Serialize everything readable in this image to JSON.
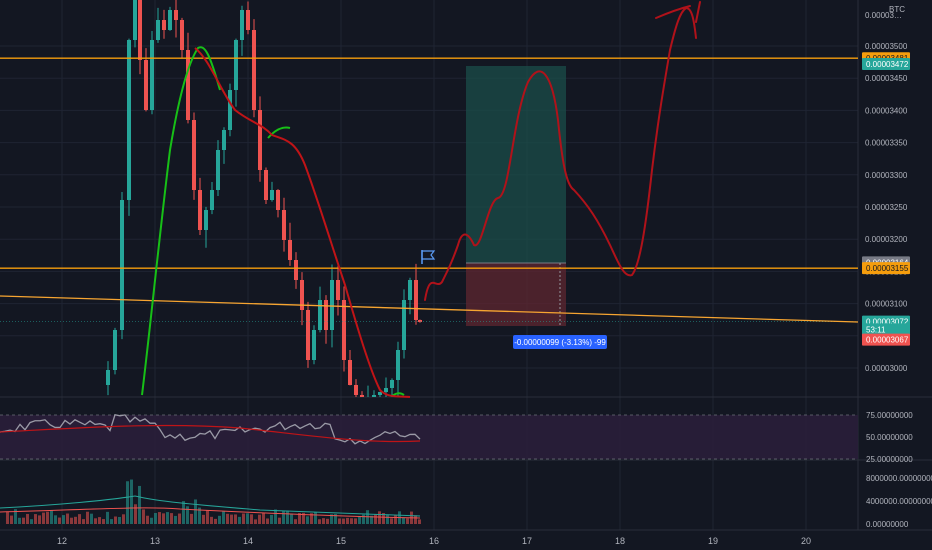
{
  "chart_data": {
    "type": "candlestick",
    "price_axis": {
      "unit": "BTC",
      "ticks": [
        "0.00003500",
        "0.00003450",
        "0.00003400",
        "0.00003350",
        "0.00003300",
        "0.00003250",
        "0.00003200",
        "0.00003150",
        "0.00003100",
        "0.00003050",
        "0.00003000"
      ],
      "tick_values": [
        3500,
        3450,
        3400,
        3350,
        3300,
        3250,
        3200,
        3150,
        3100,
        3050,
        3000
      ],
      "partial_top": "0.00003…"
    },
    "date_axis": {
      "labels": [
        "12",
        "13",
        "14",
        "15",
        "16",
        "17",
        "18",
        "19",
        "20"
      ]
    },
    "price_tags": [
      {
        "label": "0.00003481",
        "value": 3481,
        "color": "#f59d0d",
        "text_color": "#131722"
      },
      {
        "label": "0.00003472",
        "value": 3472,
        "color": "#26a69a",
        "text_color": "#ffffff"
      },
      {
        "label": "0.00003164",
        "value": 3164,
        "color": "#787b86",
        "text_color": "#ffffff"
      },
      {
        "label": "0.00003155",
        "value": 3155,
        "color": "#f59d0d",
        "text_color": "#131722"
      },
      {
        "label": "0.00003072",
        "value": 3072,
        "color": "#26a69a",
        "text_color": "#ffffff"
      },
      {
        "label": "53:11",
        "value": 3060,
        "color": "#26a69a",
        "text_color": "#ffffff"
      },
      {
        "label": "0.00003067",
        "value": 3044,
        "color": "#ef5350",
        "text_color": "#ffffff"
      }
    ],
    "position_label": "-0.00000099 (-3.13%) -99",
    "rsi_axis": {
      "ticks": [
        "75.00000000",
        "50.00000000",
        "25.00000000"
      ],
      "tick_values": [
        75,
        50,
        25
      ]
    },
    "volume_axis": {
      "ticks": [
        "8000000.00000000",
        "4000000.00000000",
        "0.00000000"
      ],
      "tick_values": [
        8000000,
        4000000,
        0
      ]
    }
  },
  "colors": {
    "background": "#131722",
    "grid": "#1f2433",
    "up": "#26a69a",
    "down": "#ef5350",
    "horizontal_line": "#f59d0d",
    "trendline": "#f7a531",
    "ma_red": "#c01417",
    "ma_green": "#17c017",
    "drawing": "#b0121a",
    "rsi": "#9a9aa6",
    "rsi_band": "#2a1e3a",
    "position_box_profit": "#1b4d4a",
    "position_box_loss": "#5a2630",
    "position_tag": "#2962ff"
  }
}
